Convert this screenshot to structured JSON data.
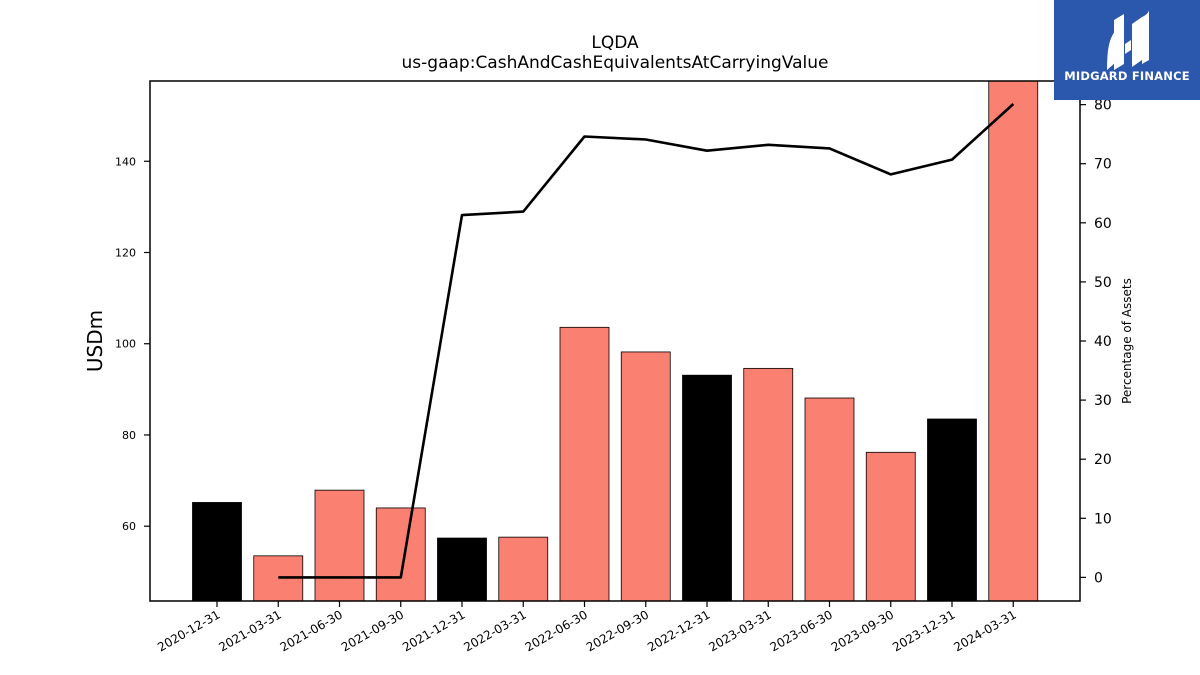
{
  "brand": {
    "name": "MIDGARD FINANCE",
    "color": "#2b58ac"
  },
  "chart_data": {
    "type": "bar",
    "title": "LQDA",
    "subtitle": "us-gaap:CashAndCashEquivalentsAtCarryingValue",
    "ylabel": "USDm",
    "y2label": "Percentage of Assets",
    "ylim": [
      43.6,
      157.6
    ],
    "y2lim": [
      -4,
      84
    ],
    "yticks": [
      60,
      80,
      100,
      120,
      140
    ],
    "y2ticks": [
      0,
      10,
      20,
      30,
      40,
      50,
      60,
      70,
      80
    ],
    "categories": [
      "2020-12-31",
      "2021-03-31",
      "2021-06-30",
      "2021-09-30",
      "2021-12-31",
      "2022-03-31",
      "2022-06-30",
      "2022-09-30",
      "2022-12-31",
      "2023-03-31",
      "2023-06-30",
      "2023-09-30",
      "2023-12-31",
      "2024-03-31"
    ],
    "series": [
      {
        "type": "bar",
        "axis": "left",
        "values": [
          65.2,
          53.5,
          67.9,
          64.0,
          57.4,
          57.6,
          103.6,
          98.2,
          93.1,
          94.6,
          88.1,
          76.2,
          83.5,
          157.6
        ],
        "colors": [
          "#000000",
          "#fa8072",
          "#fa8072",
          "#fa8072",
          "#000000",
          "#fa8072",
          "#fa8072",
          "#fa8072",
          "#000000",
          "#fa8072",
          "#fa8072",
          "#fa8072",
          "#000000",
          "#fa8072"
        ]
      },
      {
        "type": "line",
        "axis": "right",
        "color": "#000000",
        "values": [
          null,
          0,
          0,
          0,
          61.3,
          61.9,
          74.6,
          74.1,
          72.2,
          73.2,
          72.6,
          68.2,
          70.7,
          80.1
        ]
      }
    ],
    "grid": false,
    "legend": "none"
  }
}
